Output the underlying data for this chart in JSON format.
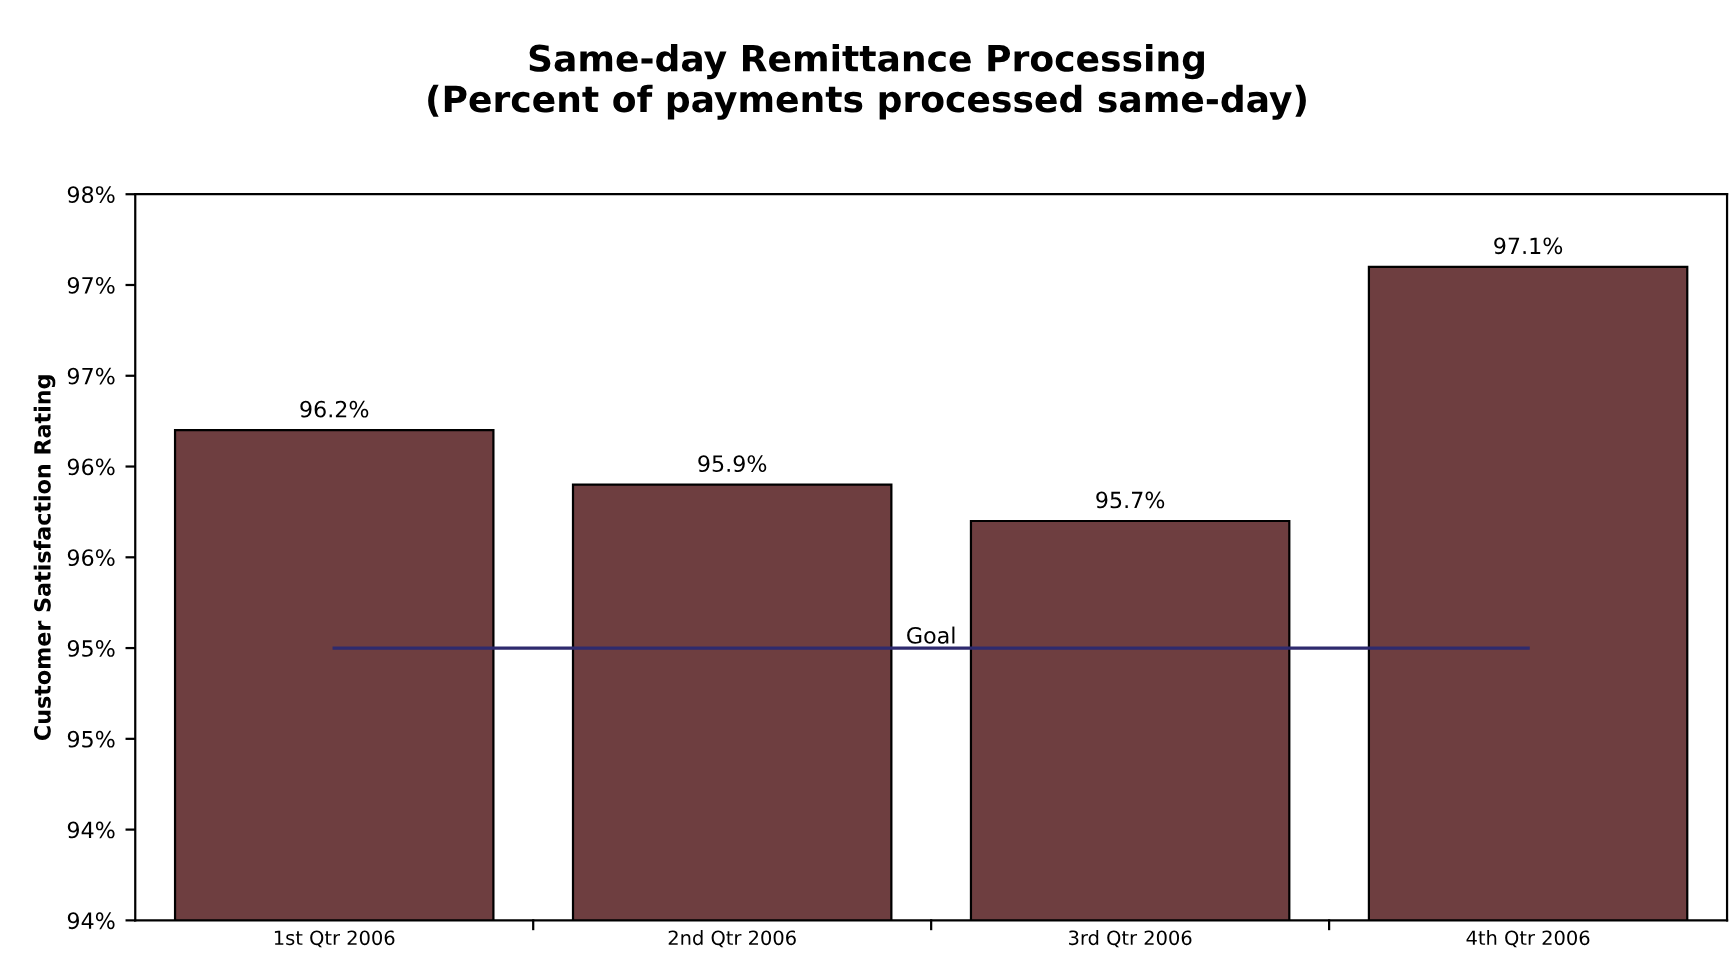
{
  "chart_data": {
    "type": "bar",
    "title": "Same-day Remittance Processing\n(Percent of payments processed same-day)",
    "ylabel": "Customer Satisfaction Rating",
    "categories": [
      "1st Qtr 2006",
      "2nd Qtr 2006",
      "3rd Qtr 2006",
      "4th Qtr 2006"
    ],
    "series": [
      {
        "color": "#6e3e40",
        "values": [
          96.2,
          95.9,
          95.7,
          97.1
        ],
        "value_labels": [
          "96.2%",
          "95.9%",
          "95.7%",
          "97.1%"
        ]
      },
      {
        "type": "line",
        "name": "Goal",
        "color": "#2e2a6e",
        "values": [
          95,
          95,
          95,
          95
        ]
      }
    ],
    "ylim": [
      93.5,
      97.5
    ],
    "yticks": [
      {
        "value": 93.5,
        "label": "94%"
      },
      {
        "value": 94,
        "label": "94%"
      },
      {
        "value": 94.5,
        "label": "95%"
      },
      {
        "value": 95,
        "label": "95%"
      },
      {
        "value": 95.5,
        "label": "96%"
      },
      {
        "value": 96,
        "label": "96%"
      },
      {
        "value": 96.5,
        "label": "97%"
      },
      {
        "value": 97,
        "label": "97%"
      },
      {
        "value": 97.5,
        "label": "98%"
      }
    ],
    "grid": false,
    "legend": false
  }
}
